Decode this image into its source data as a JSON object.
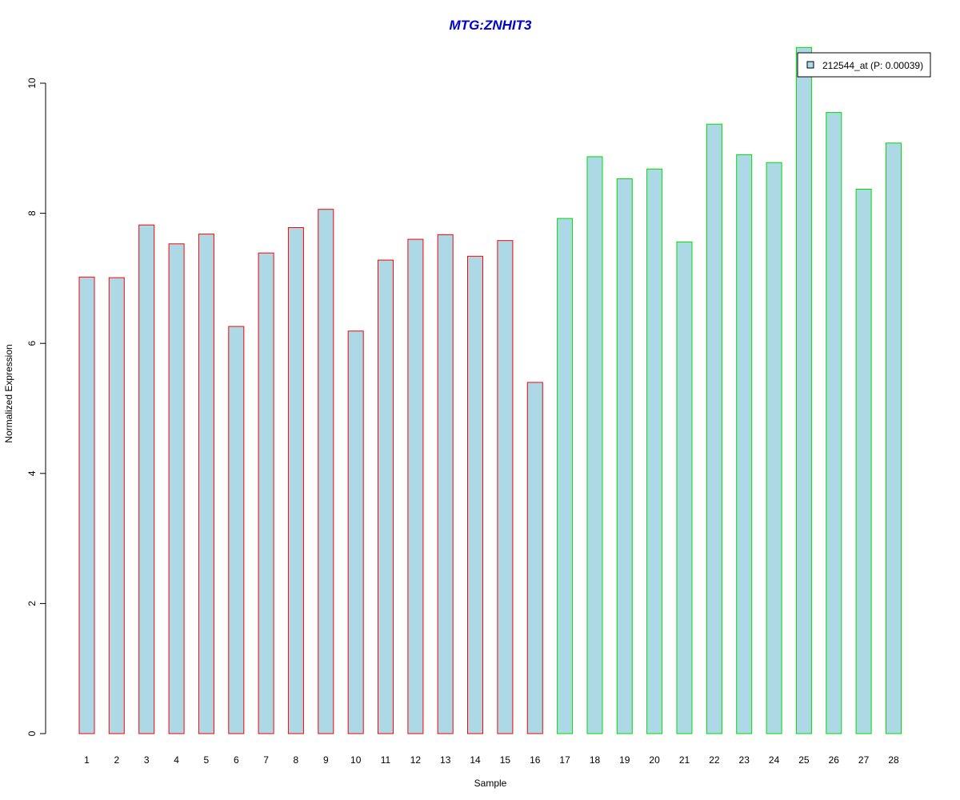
{
  "chart_data": {
    "type": "bar",
    "title": "MTG:ZNHIT3",
    "xlabel": "Sample",
    "ylabel": "Normalized Expression",
    "ylim": [
      0,
      10
    ],
    "yticks": [
      0,
      2,
      4,
      6,
      8,
      10
    ],
    "grid": false,
    "legend_position": "top-right",
    "categories": [
      "1",
      "2",
      "3",
      "4",
      "5",
      "6",
      "7",
      "8",
      "9",
      "10",
      "11",
      "12",
      "13",
      "14",
      "15",
      "16",
      "17",
      "18",
      "19",
      "20",
      "21",
      "22",
      "23",
      "24",
      "25",
      "26",
      "27",
      "28"
    ],
    "series": [
      {
        "name": "212544_at (P: 0.00039)",
        "fill": "#add8e6",
        "values": [
          7.02,
          7.01,
          7.82,
          7.53,
          7.68,
          6.26,
          7.39,
          7.78,
          8.06,
          6.19,
          7.28,
          7.6,
          7.67,
          7.34,
          7.58,
          5.4,
          7.92,
          8.87,
          8.53,
          8.68,
          7.56,
          9.37,
          8.9,
          8.78,
          10.55,
          9.55,
          8.37,
          9.08
        ]
      }
    ],
    "groups": [
      {
        "samples": [
          1,
          16
        ],
        "border_color": "#ff0000"
      },
      {
        "samples": [
          17,
          28
        ],
        "border_color": "#00dd00"
      }
    ],
    "colors": {
      "title": "#0000cc",
      "bar_fill": "#add8e6",
      "group1_border": "#ff0000",
      "group2_border": "#00dd00"
    }
  }
}
